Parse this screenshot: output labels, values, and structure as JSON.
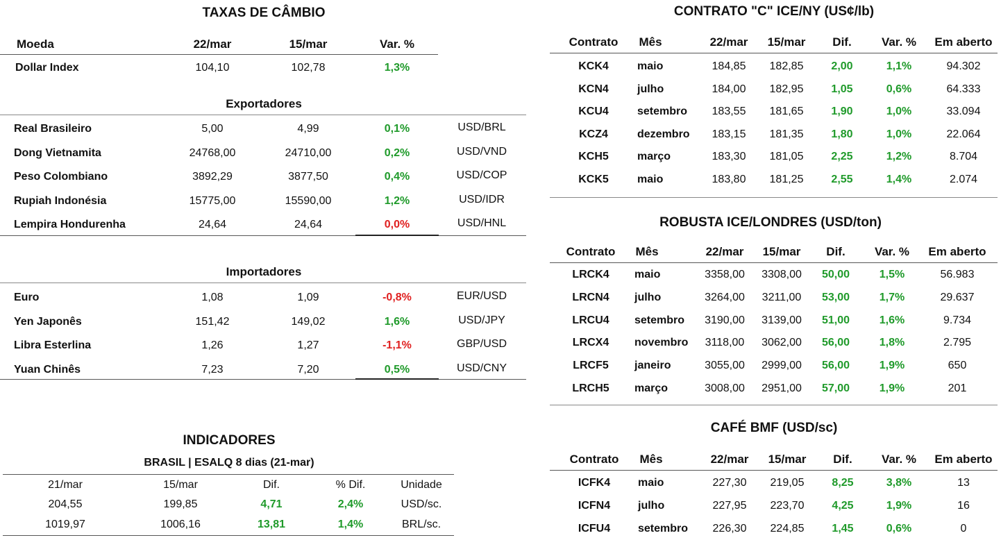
{
  "fx": {
    "title": "TAXAS DE CÂMBIO",
    "headers": {
      "moeda": "Moeda",
      "d1": "22/mar",
      "d2": "15/mar",
      "var": "Var. %"
    },
    "dollar_index": {
      "name": "Dollar Index",
      "v1": "104,10",
      "v2": "102,78",
      "var": "1,3%"
    },
    "exporters_title": "Exportadores",
    "exporters": [
      {
        "name": "Real Brasileiro",
        "v1": "5,00",
        "v2": "4,99",
        "var": "0,1%",
        "pair": "USD/BRL",
        "sign": "pos"
      },
      {
        "name": "Dong Vietnamita",
        "v1": "24768,00",
        "v2": "24710,00",
        "var": "0,2%",
        "pair": "USD/VND",
        "sign": "pos"
      },
      {
        "name": "Peso Colombiano",
        "v1": "3892,29",
        "v2": "3877,50",
        "var": "0,4%",
        "pair": "USD/COP",
        "sign": "pos"
      },
      {
        "name": "Rupiah Indonésia",
        "v1": "15775,00",
        "v2": "15590,00",
        "var": "1,2%",
        "pair": "USD/IDR",
        "sign": "pos"
      },
      {
        "name": "Lempira Hondurenha",
        "v1": "24,64",
        "v2": "24,64",
        "var": "0,0%",
        "pair": "USD/HNL",
        "sign": "neg"
      }
    ],
    "importers_title": "Importadores",
    "importers": [
      {
        "name": "Euro",
        "v1": "1,08",
        "v2": "1,09",
        "var": "-0,8%",
        "pair": "EUR/USD",
        "sign": "neg"
      },
      {
        "name": "Yen Japonês",
        "v1": "151,42",
        "v2": "149,02",
        "var": "1,6%",
        "pair": "USD/JPY",
        "sign": "pos"
      },
      {
        "name": "Libra Esterlina",
        "v1": "1,26",
        "v2": "1,27",
        "var": "-1,1%",
        "pair": "GBP/USD",
        "sign": "neg"
      },
      {
        "name": "Yuan Chinês",
        "v1": "7,23",
        "v2": "7,20",
        "var": "0,5%",
        "pair": "USD/CNY",
        "sign": "pos"
      }
    ]
  },
  "indicators": {
    "title": "INDICADORES",
    "subtitle": "BRASIL | ESALQ 8 dias (21-mar)",
    "headers": {
      "d1": "21/mar",
      "d2": "15/mar",
      "dif": "Dif.",
      "pdif": "% Dif.",
      "unit": "Unidade"
    },
    "rows": [
      {
        "v1": "204,55",
        "v2": "199,85",
        "dif": "4,71",
        "pdif": "2,4%",
        "unit": "USD/sc."
      },
      {
        "v1": "1019,97",
        "v2": "1006,16",
        "dif": "13,81",
        "pdif": "1,4%",
        "unit": "BRL/sc."
      }
    ]
  },
  "contract_c": {
    "title": "CONTRATO \"C\" ICE/NY (US¢/lb)",
    "headers": {
      "contrato": "Contrato",
      "mes": "Mês",
      "d1": "22/mar",
      "d2": "15/mar",
      "dif": "Dif.",
      "var": "Var. %",
      "open": "Em aberto"
    },
    "rows": [
      {
        "c": "KCK4",
        "m": "maio",
        "v1": "184,85",
        "v2": "182,85",
        "dif": "2,00",
        "var": "1,1%",
        "open": "94.302"
      },
      {
        "c": "KCN4",
        "m": "julho",
        "v1": "184,00",
        "v2": "182,95",
        "dif": "1,05",
        "var": "0,6%",
        "open": "64.333"
      },
      {
        "c": "KCU4",
        "m": "setembro",
        "v1": "183,55",
        "v2": "181,65",
        "dif": "1,90",
        "var": "1,0%",
        "open": "33.094"
      },
      {
        "c": "KCZ4",
        "m": "dezembro",
        "v1": "183,15",
        "v2": "181,35",
        "dif": "1,80",
        "var": "1,0%",
        "open": "22.064"
      },
      {
        "c": "KCH5",
        "m": "março",
        "v1": "183,30",
        "v2": "181,05",
        "dif": "2,25",
        "var": "1,2%",
        "open": "8.704"
      },
      {
        "c": "KCK5",
        "m": "maio",
        "v1": "183,80",
        "v2": "181,25",
        "dif": "2,55",
        "var": "1,4%",
        "open": "2.074"
      }
    ]
  },
  "robusta": {
    "title": "ROBUSTA ICE/LONDRES (USD/ton)",
    "headers": {
      "contrato": "Contrato",
      "mes": "Mês",
      "d1": "22/mar",
      "d2": "15/mar",
      "dif": "Dif.",
      "var": "Var. %",
      "open": "Em aberto"
    },
    "rows": [
      {
        "c": "LRCK4",
        "m": "maio",
        "v1": "3358,00",
        "v2": "3308,00",
        "dif": "50,00",
        "var": "1,5%",
        "open": "56.983"
      },
      {
        "c": "LRCN4",
        "m": "julho",
        "v1": "3264,00",
        "v2": "3211,00",
        "dif": "53,00",
        "var": "1,7%",
        "open": "29.637"
      },
      {
        "c": "LRCU4",
        "m": "setembro",
        "v1": "3190,00",
        "v2": "3139,00",
        "dif": "51,00",
        "var": "1,6%",
        "open": "9.734"
      },
      {
        "c": "LRCX4",
        "m": "novembro",
        "v1": "3118,00",
        "v2": "3062,00",
        "dif": "56,00",
        "var": "1,8%",
        "open": "2.795"
      },
      {
        "c": "LRCF5",
        "m": "janeiro",
        "v1": "3055,00",
        "v2": "2999,00",
        "dif": "56,00",
        "var": "1,9%",
        "open": "650"
      },
      {
        "c": "LRCH5",
        "m": "março",
        "v1": "3008,00",
        "v2": "2951,00",
        "dif": "57,00",
        "var": "1,9%",
        "open": "201"
      }
    ]
  },
  "bmf": {
    "title": "CAFÉ BMF (USD/sc)",
    "headers": {
      "contrato": "Contrato",
      "mes": "Mês",
      "d1": "22/mar",
      "d2": "15/mar",
      "dif": "Dif.",
      "var": "Var. %",
      "open": "Em aberto"
    },
    "rows": [
      {
        "c": "ICFK4",
        "m": "maio",
        "v1": "227,30",
        "v2": "219,05",
        "dif": "8,25",
        "var": "3,8%",
        "open": "13"
      },
      {
        "c": "ICFN4",
        "m": "julho",
        "v1": "227,95",
        "v2": "223,70",
        "dif": "4,25",
        "var": "1,9%",
        "open": "16"
      },
      {
        "c": "ICFU4",
        "m": "setembro",
        "v1": "226,30",
        "v2": "224,85",
        "dif": "1,45",
        "var": "0,6%",
        "open": "0"
      }
    ]
  },
  "colors": {
    "positive": "#1f9a2a",
    "negative": "#e02020"
  }
}
